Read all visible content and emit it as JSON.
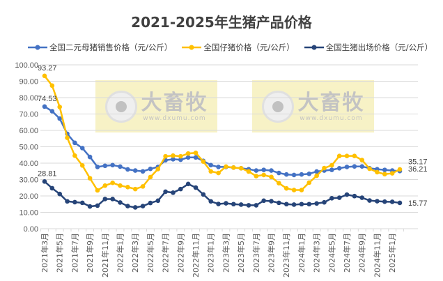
{
  "chart_data": {
    "type": "line",
    "title": "2021-2025年生猪产品价格",
    "ylim": [
      0,
      100
    ],
    "yticks": [
      "0.00",
      "10.00",
      "20.00",
      "30.00",
      "40.00",
      "50.00",
      "60.00",
      "70.00",
      "80.00",
      "90.00",
      "100.00"
    ],
    "grid": true,
    "legend": "top",
    "x": [
      "2021年3月",
      "2021年4月",
      "2021年5月",
      "2021年6月",
      "2021年7月",
      "2021年8月",
      "2021年9月",
      "2021年10月",
      "2021年11月",
      "2021年12月",
      "2022年1月",
      "2022年2月",
      "2022年3月",
      "2022年4月",
      "2022年5月",
      "2022年6月",
      "2022年7月",
      "2022年8月",
      "2022年9月",
      "2022年10月",
      "2022年11月",
      "2022年12月",
      "2023年1月",
      "2023年2月",
      "2023年3月",
      "2023年4月",
      "2023年5月",
      "2023年6月",
      "2023年7月",
      "2023年8月",
      "2023年9月",
      "2023年10月",
      "2023年11月",
      "2023年12月",
      "2024年1月",
      "2024年2月",
      "2024年3月",
      "2024年4月",
      "2024年5月",
      "2024年6月",
      "2024年7月",
      "2024年8月",
      "2024年9月",
      "2024年10月",
      "2024年11月",
      "2024年12月",
      "2025年1月",
      "2025年2月"
    ],
    "series": [
      {
        "name": "全国二元母猪销售价格（元/公斤）",
        "color": "#4472c4",
        "values": [
          74.53,
          71.7,
          67.2,
          57.9,
          52.4,
          49.2,
          43.8,
          37.7,
          38.4,
          38.8,
          37.9,
          36.2,
          35.5,
          35.0,
          36.5,
          37.7,
          41.8,
          42.4,
          42.1,
          43.5,
          43.5,
          41.4,
          38.8,
          37.7,
          37.7,
          37.3,
          36.9,
          36.3,
          35.5,
          35.9,
          35.5,
          34.0,
          33.1,
          32.8,
          33.1,
          33.5,
          34.9,
          35.5,
          35.9,
          36.9,
          37.7,
          38.0,
          38.0,
          36.9,
          36.3,
          35.9,
          35.5,
          35.17
        ],
        "first_label": "74.53",
        "last_label": "35.17"
      },
      {
        "name": "全国仔猪价格（元/公斤）",
        "color": "#ffc000",
        "values": [
          93.27,
          87.3,
          74.3,
          55.5,
          44.6,
          38.6,
          30.8,
          23.4,
          26.3,
          28.0,
          26.3,
          25.4,
          24.2,
          25.8,
          31.5,
          36.4,
          44.2,
          44.6,
          44.2,
          45.9,
          46.3,
          41.0,
          35.0,
          34.0,
          37.9,
          37.3,
          36.9,
          34.9,
          32.1,
          32.8,
          31.6,
          27.8,
          24.6,
          23.6,
          23.6,
          28.1,
          32.3,
          37.0,
          38.7,
          44.4,
          44.4,
          44.4,
          41.9,
          36.6,
          34.5,
          33.3,
          33.8,
          36.21
        ],
        "first_label": "93.27",
        "last_label": "36.21"
      },
      {
        "name": "全国生猪出场价格（元/公斤）",
        "color": "#264478",
        "values": [
          28.81,
          24.7,
          21.2,
          16.7,
          16.2,
          15.8,
          13.6,
          14.1,
          18.1,
          18.1,
          16.0,
          13.8,
          13.0,
          13.8,
          15.7,
          17.1,
          22.6,
          22.0,
          24.2,
          27.3,
          25.1,
          20.9,
          16.7,
          15.1,
          15.5,
          15.0,
          14.7,
          14.3,
          14.3,
          17.1,
          16.8,
          15.8,
          15.0,
          14.7,
          15.0,
          15.0,
          15.4,
          16.1,
          18.6,
          18.9,
          20.8,
          19.9,
          18.9,
          17.2,
          16.8,
          16.5,
          16.4,
          15.77
        ],
        "first_label": "28.81",
        "last_label": "15.77"
      }
    ]
  },
  "watermark": {
    "brand": "大畜牧",
    "url": "www.dxumu.com"
  }
}
